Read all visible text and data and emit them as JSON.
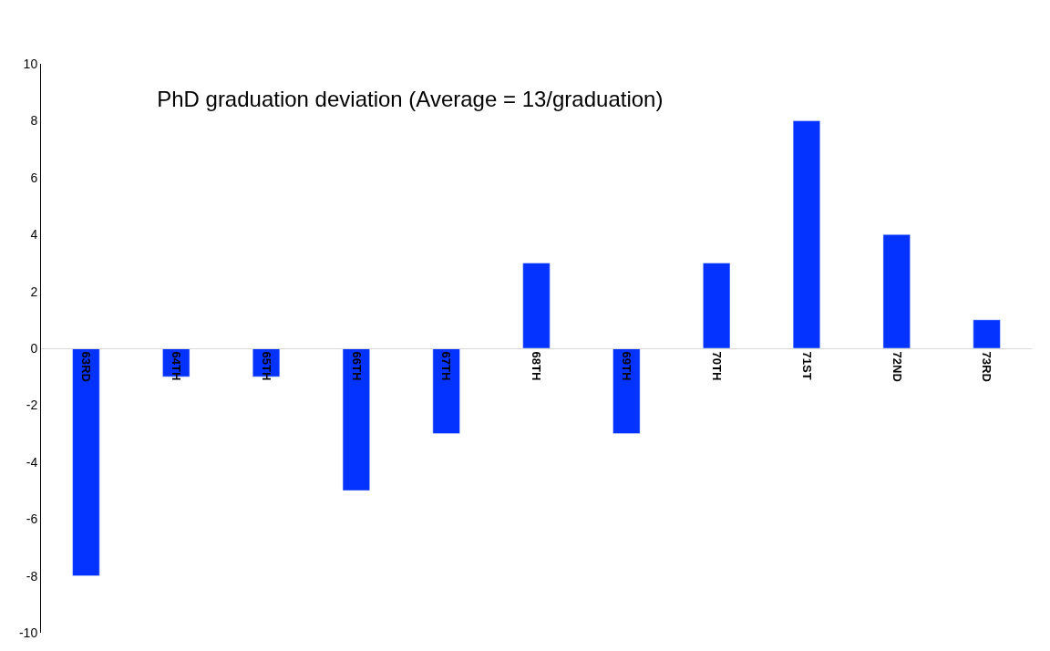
{
  "chart_data": {
    "type": "bar",
    "title": "PhD graduation deviation (Average = 13/graduation)",
    "categories": [
      "63RD",
      "64TH",
      "65TH",
      "66TH",
      "67TH",
      "68TH",
      "69TH",
      "70TH",
      "71ST",
      "72ND",
      "73RD"
    ],
    "values": [
      -8,
      -1,
      -1,
      -5,
      -3,
      3,
      -3,
      3,
      8,
      4,
      1
    ],
    "color": "#0433ff",
    "ylim": [
      -10,
      10
    ],
    "yticks": [
      -10,
      -8,
      -6,
      -4,
      -2,
      0,
      2,
      4,
      6,
      8,
      10
    ]
  }
}
